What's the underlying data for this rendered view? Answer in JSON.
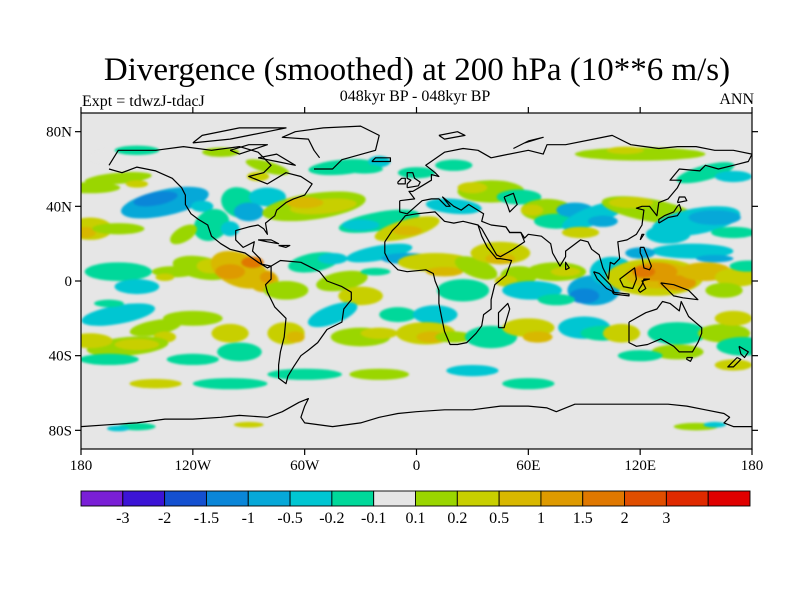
{
  "header": {
    "title": "Divergence (smoothed) at 200 hPa (10**6 m/s)",
    "subtitle": "048kyr BP - 048kyr BP",
    "experiment": "Expt = tdwzJ-tdacJ",
    "season": "ANN"
  },
  "map": {
    "projection": "cylindrical-equidistant",
    "field": "divergence",
    "ocean_color": "#e6e6e6",
    "y_ticks": [
      {
        "label": "80N",
        "lat": 80
      },
      {
        "label": "40N",
        "lat": 40
      },
      {
        "label": "0",
        "lat": 0
      },
      {
        "label": "40S",
        "lat": -40
      },
      {
        "label": "80S",
        "lat": -80
      }
    ],
    "x_ticks": [
      {
        "label": "180",
        "lon": -180
      },
      {
        "label": "120W",
        "lon": -120
      },
      {
        "label": "60W",
        "lon": -60
      },
      {
        "label": "0",
        "lon": 0
      },
      {
        "label": "60E",
        "lon": 60
      },
      {
        "label": "120E",
        "lon": 120
      },
      {
        "label": "180",
        "lon": 180
      }
    ]
  },
  "colorbar": {
    "colors": [
      "#7a1fd6",
      "#3c14d6",
      "#1450d0",
      "#0a86d8",
      "#06a8d8",
      "#00c6d2",
      "#00d89a",
      "#e6e6e6",
      "#9ad600",
      "#c8cf00",
      "#d8b800",
      "#de9a00",
      "#e07800",
      "#e04e00",
      "#e02a00",
      "#e00000"
    ],
    "labels": [
      "-3",
      "-2",
      "-1.5",
      "-1",
      "-0.5",
      "-0.2",
      "-0.1",
      "0.1",
      "0.2",
      "0.5",
      "1",
      "1.5",
      "2",
      "3"
    ]
  }
}
